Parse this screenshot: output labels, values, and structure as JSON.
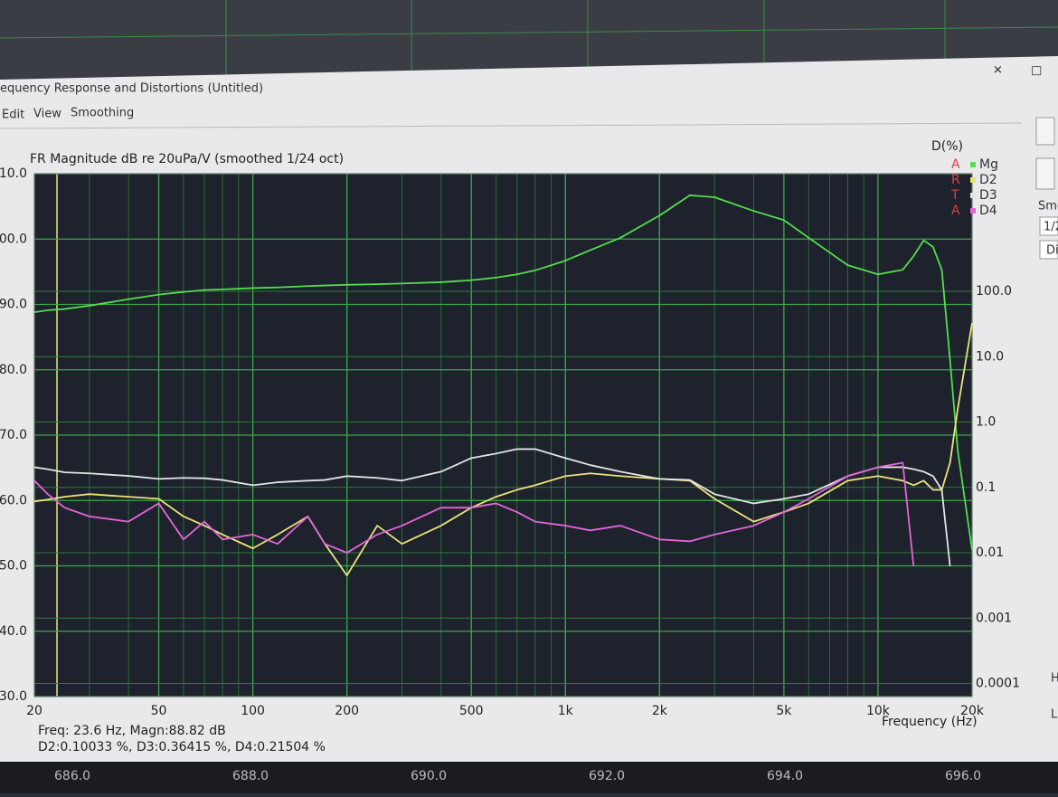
{
  "window": {
    "title": "equency Response and Distortions (Untitled)",
    "menu": [
      "Edit",
      "View",
      "Smoothing"
    ],
    "side_panel": [
      "Smo",
      "1/2",
      "Di",
      "H",
      "L"
    ],
    "background_axis": [
      "686.0",
      "688.0",
      "690.0",
      "692.0",
      "694.0",
      "696.0"
    ]
  },
  "cursor": {
    "line1": "Freq: 23.6 Hz, Magn:88.82 dB",
    "line2": "D2:0.10033 %, D3:0.36415 %, D4:0.21504 %"
  },
  "brand": [
    "A",
    "R",
    "T",
    "A"
  ],
  "chart_data": {
    "type": "line",
    "title": "FR Magnitude dB re 20uPa/V (smoothed 1/24 oct)",
    "x_label": "Frequency (Hz)",
    "y2_label": "D(%)",
    "xlog": true,
    "y2log": true,
    "grid": true,
    "xlim": [
      20,
      20000
    ],
    "xticks": [
      20,
      50,
      100,
      200,
      500,
      {
        "value": 1000,
        "label": "1k"
      },
      {
        "value": 2000,
        "label": "2k"
      },
      {
        "value": 5000,
        "label": "5k"
      },
      {
        "value": 10000,
        "label": "10k"
      },
      {
        "value": 20000,
        "label": "20k"
      }
    ],
    "ylim": [
      30,
      110
    ],
    "yticks": [
      {
        "value": 110,
        "label": "110.0"
      },
      {
        "value": 100,
        "label": "100.0"
      },
      {
        "value": 90,
        "label": "90.0"
      },
      {
        "value": 80,
        "label": "80.0"
      },
      {
        "value": 70,
        "label": "70.0"
      },
      {
        "value": 60,
        "label": "60.0"
      },
      {
        "value": 50,
        "label": "50.0"
      },
      {
        "value": 40,
        "label": "40.0"
      },
      {
        "value": 30,
        "label": "30.0"
      }
    ],
    "y2lim": [
      6.31e-05,
      6310
    ],
    "y2ticks": [
      {
        "value": 100,
        "label": "100.0"
      },
      {
        "value": 10,
        "label": "10.0"
      },
      {
        "value": 1,
        "label": "1.0"
      },
      0.1,
      0.01,
      0.001,
      0.0001
    ],
    "x": [
      20,
      22,
      25,
      30,
      40,
      50,
      60,
      70,
      80,
      100,
      120,
      150,
      170,
      200,
      250,
      300,
      400,
      500,
      600,
      700,
      800,
      1000,
      1200,
      1500,
      2000,
      2500,
      3000,
      4000,
      5000,
      6000,
      8000,
      10000,
      12000,
      13000,
      14000,
      15000,
      16000,
      17000,
      18000,
      20000
    ],
    "series": [
      {
        "name": "Mg",
        "color": "#55dd4e",
        "values": [
          88.8,
          89.1,
          89.3,
          89.8,
          90.8,
          91.5,
          91.9,
          92.2,
          92.3,
          92.5,
          92.6,
          92.8,
          92.9,
          93,
          93.1,
          93.2,
          93.4,
          93.7,
          94.1,
          94.6,
          95.2,
          96.7,
          98.3,
          100.2,
          103.6,
          106.7,
          106.4,
          104.3,
          102.9,
          100.2,
          96,
          94.6,
          95.3,
          97.4,
          99.8,
          98.8,
          95.3,
          81.5,
          67.6,
          52.4
        ]
      },
      {
        "name": "D2",
        "color": "#ece27c",
        "axis": "y2",
        "values": [
          0.061,
          0.065,
          0.072,
          0.079,
          0.072,
          0.067,
          0.036,
          0.026,
          0.019,
          0.0117,
          0.019,
          0.036,
          0.0137,
          0.0045,
          0.026,
          0.0137,
          0.026,
          0.049,
          0.072,
          0.092,
          0.108,
          0.149,
          0.164,
          0.149,
          0.135,
          0.127,
          0.067,
          0.03,
          0.042,
          0.057,
          0.127,
          0.149,
          0.127,
          0.108,
          0.127,
          0.092,
          0.092,
          0.239,
          1.61,
          32.9
        ]
      },
      {
        "name": "D3",
        "color": "#e4e4e4",
        "axis": "y2",
        "values": [
          0.204,
          0.19,
          0.17,
          0.164,
          0.15,
          0.135,
          0.14,
          0.138,
          0.13,
          0.108,
          0.12,
          0.127,
          0.13,
          0.149,
          0.14,
          0.127,
          0.174,
          0.281,
          0.33,
          0.386,
          0.386,
          0.281,
          0.22,
          0.174,
          0.135,
          0.13,
          0.079,
          0.057,
          0.067,
          0.079,
          0.149,
          0.204,
          0.204,
          0.19,
          0.174,
          0.149,
          0.092,
          0.0062,
          null,
          null
        ]
      },
      {
        "name": "D4",
        "color": "#e466d8",
        "axis": "y2",
        "values": [
          0.127,
          0.08,
          0.049,
          0.036,
          0.03,
          0.057,
          0.016,
          0.03,
          0.016,
          0.019,
          0.0137,
          0.036,
          0.0137,
          0.01,
          0.019,
          0.026,
          0.049,
          0.049,
          0.057,
          0.042,
          0.03,
          0.026,
          0.022,
          0.026,
          0.016,
          0.015,
          0.019,
          0.026,
          0.042,
          0.067,
          0.149,
          0.204,
          0.239,
          0.0062,
          null,
          null,
          null,
          null,
          null,
          null
        ]
      }
    ]
  }
}
